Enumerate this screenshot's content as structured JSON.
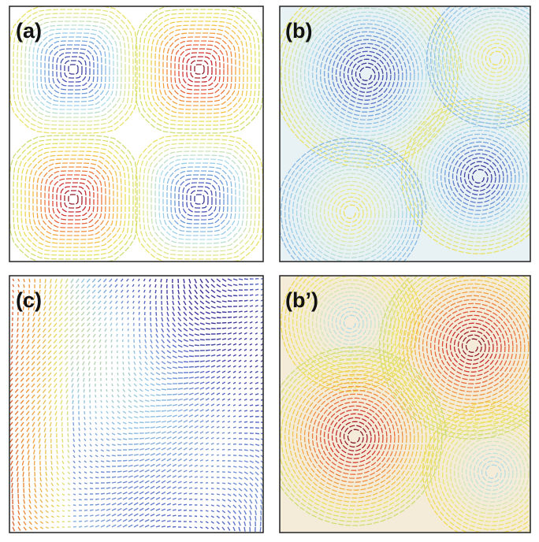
{
  "panels": [
    {
      "label": "(a)"
    },
    {
      "label": "(b)"
    },
    {
      "label": "(c)"
    },
    {
      "label": "(b’)"
    }
  ]
}
